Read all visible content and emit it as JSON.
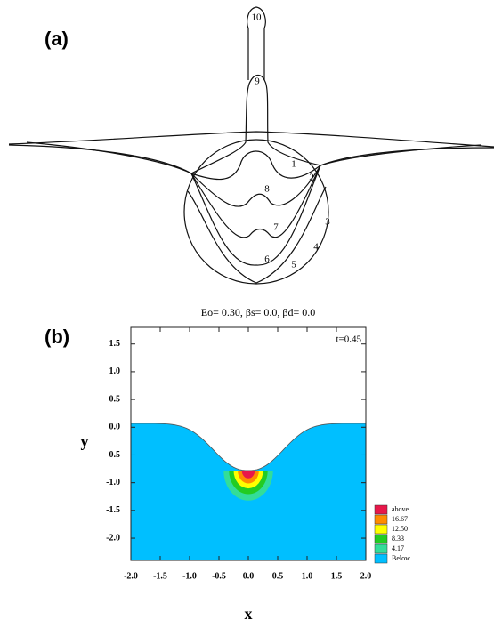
{
  "panel_a": {
    "label": "(a)",
    "curve_labels": [
      "1",
      "2",
      "3",
      "4",
      "5",
      "6",
      "7",
      "8",
      "9",
      "10"
    ]
  },
  "panel_b": {
    "label": "(b)",
    "title": "Eo= 0.30, βs= 0.0, βd= 0.0",
    "time_label": "t=0.45",
    "x_label": "x",
    "y_label": "y",
    "xlim": [
      -2,
      2
    ],
    "ylim": [
      -2.4,
      1.8
    ],
    "xticks": [
      {
        "value": -2,
        "label": "-2.0"
      },
      {
        "value": -1.5,
        "label": "-1.5"
      },
      {
        "value": -1,
        "label": "-1.0"
      },
      {
        "value": -0.5,
        "label": "-0.5"
      },
      {
        "value": 0,
        "label": "0.0"
      },
      {
        "value": 0.5,
        "label": "0.5"
      },
      {
        "value": 1,
        "label": "1.0"
      },
      {
        "value": 1.5,
        "label": "1.5"
      },
      {
        "value": 2,
        "label": "2.0"
      }
    ],
    "yticks": [
      {
        "value": 1.5,
        "label": "1.5"
      },
      {
        "value": 1,
        "label": "1.0"
      },
      {
        "value": 0.5,
        "label": "0.5"
      },
      {
        "value": 0,
        "label": "0.0"
      },
      {
        "value": -0.5,
        "label": "-0.5"
      },
      {
        "value": -1,
        "label": "-1.0"
      },
      {
        "value": -1.5,
        "label": "-1.5"
      },
      {
        "value": -2,
        "label": "-2.0"
      }
    ],
    "legend": [
      {
        "name": "above",
        "color": "#e8174a"
      },
      {
        "name": "16.67",
        "color": "#ff8c00"
      },
      {
        "name": "12.50",
        "color": "#ffff00"
      },
      {
        "name": "8.33",
        "color": "#22cc22"
      },
      {
        "name": "4.17",
        "color": "#33dd99"
      },
      {
        "name": "Below",
        "color": "#00bfff"
      }
    ]
  }
}
